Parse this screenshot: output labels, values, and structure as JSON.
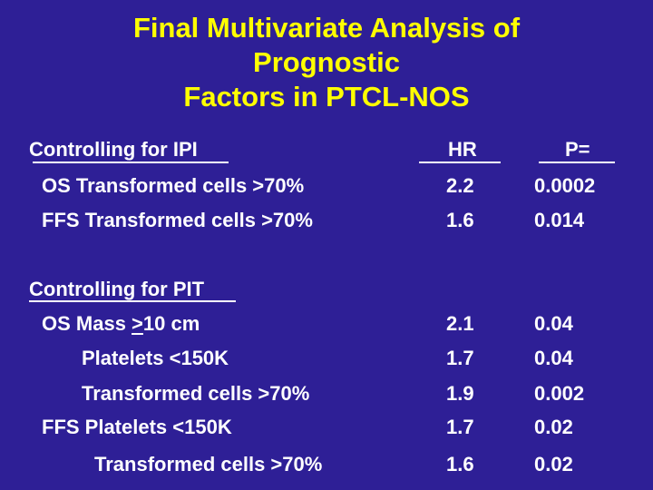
{
  "title": {
    "line1": "Final Multivariate Analysis of",
    "line2": "Prognostic",
    "line3": "Factors in PTCL-NOS"
  },
  "section_ipi": {
    "heading": "Controlling for IPI",
    "hr_header": "HR",
    "p_header": "P=",
    "rows": [
      {
        "label": "OS Transformed cells >70%",
        "hr": "2.2",
        "p": "0.0002"
      },
      {
        "label": "FFS Transformed cells >70%",
        "hr": "1.6",
        "p": "0.014"
      }
    ]
  },
  "section_pit": {
    "heading": "Controlling for PIT",
    "row0": {
      "label_prefix": "OS Mass ",
      "label_underlined": ">",
      "label_suffix": "10 cm",
      "hr": "2.1",
      "p": "0.04"
    },
    "rows": [
      {
        "label": "Platelets <150K",
        "hr": "1.7",
        "p": "0.04"
      },
      {
        "label": "Transformed cells >70%",
        "hr": "1.9",
        "p": "0.002"
      },
      {
        "label": "FFS Platelets <150K",
        "hr": "1.7",
        "p": "0.02"
      },
      {
        "label": "Transformed cells >70%",
        "hr": "1.6",
        "p": "0.02"
      }
    ]
  },
  "colors": {
    "background": "#2e1f96",
    "title": "#ffff00",
    "text": "#ffffff"
  }
}
